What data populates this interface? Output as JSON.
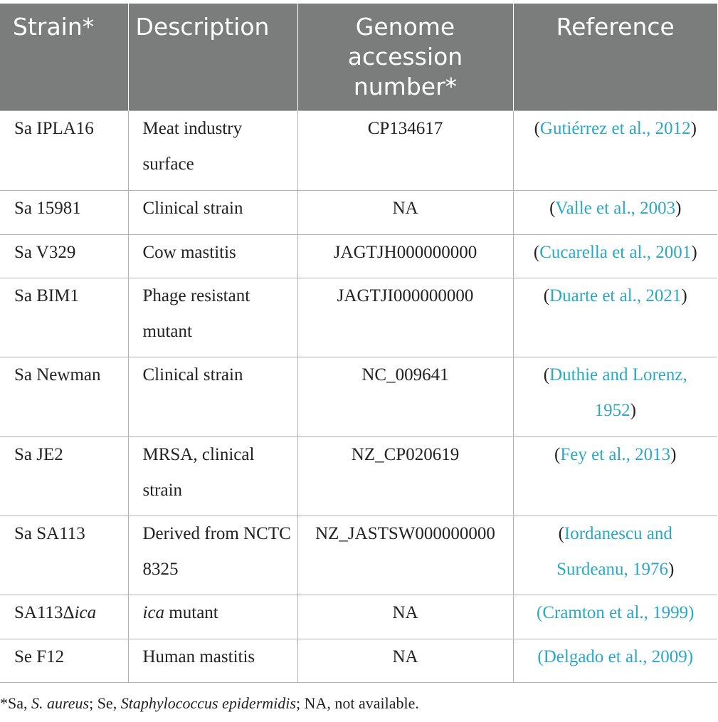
{
  "table": {
    "headers": [
      {
        "label": "Strain*",
        "align": "left"
      },
      {
        "label": "Description",
        "align": "left"
      },
      {
        "label": "Genome accession number*",
        "align": "center"
      },
      {
        "label": "Reference",
        "align": "center"
      }
    ],
    "rows": [
      {
        "strain": "Sa IPLA16",
        "strain_italic": "",
        "description": "Meat industry surface",
        "description_italic": "",
        "accession": "CP134617",
        "reference": "Gutiérrez et al., 2012",
        "ref_paren_colored": false
      },
      {
        "strain": "Sa 15981",
        "strain_italic": "",
        "description": "Clinical strain",
        "description_italic": "",
        "accession": "NA",
        "reference": "Valle et al., 2003",
        "ref_paren_colored": false
      },
      {
        "strain": "Sa V329",
        "strain_italic": "",
        "description": "Cow mastitis",
        "description_italic": "",
        "accession": "JAGTJH000000000",
        "reference": "Cucarella et al., 2001",
        "ref_paren_colored": false
      },
      {
        "strain": "Sa BIM1",
        "strain_italic": "",
        "description": "Phage resistant mutant",
        "description_italic": "",
        "accession": "JAGTJI000000000",
        "reference": "Duarte et al., 2021",
        "ref_paren_colored": false
      },
      {
        "strain": "Sa Newman",
        "strain_italic": "",
        "description": "Clinical strain",
        "description_italic": "",
        "accession": "NC_009641",
        "reference": "Duthie and Lorenz, 1952",
        "ref_paren_colored": false
      },
      {
        "strain": "Sa JE2",
        "strain_italic": "",
        "description": "MRSA, clinical strain",
        "description_italic": "",
        "accession": "NZ_CP020619",
        "reference": "Fey et al., 2013",
        "ref_paren_colored": false
      },
      {
        "strain": "Sa SA113",
        "strain_italic": "",
        "description": "Derived from NCTC 8325",
        "description_italic": "",
        "accession": "NZ_JASTSW000000000",
        "reference": "Iordanescu and Surdeanu, 1976",
        "ref_paren_colored": false
      },
      {
        "strain": "SA113Δ",
        "strain_italic": "ica",
        "description": " mutant",
        "description_italic": "ica",
        "accession": "NA",
        "reference": "Cramton et al., 1999",
        "ref_paren_colored": true
      },
      {
        "strain": "Se F12",
        "strain_italic": "",
        "description": "Human mastitis",
        "description_italic": "",
        "accession": "NA",
        "reference": "Delgado et al., 2009",
        "ref_paren_colored": true
      }
    ],
    "row_heights": [
      112,
      62,
      61,
      111,
      112,
      111,
      111,
      62,
      61
    ]
  },
  "footnote": {
    "parts": [
      {
        "text": "*Sa, ",
        "italic": false
      },
      {
        "text": "S. aureus",
        "italic": true
      },
      {
        "text": "; Se, ",
        "italic": false
      },
      {
        "text": "Staphylococcus epidermidis",
        "italic": true
      },
      {
        "text": "; NA, not available.",
        "italic": false
      }
    ]
  },
  "colors": {
    "header_bg": "#7b7d7d",
    "header_text": "#ffffff",
    "link": "#2aa8c5",
    "text": "#222222",
    "border": "#b3b3b3"
  }
}
